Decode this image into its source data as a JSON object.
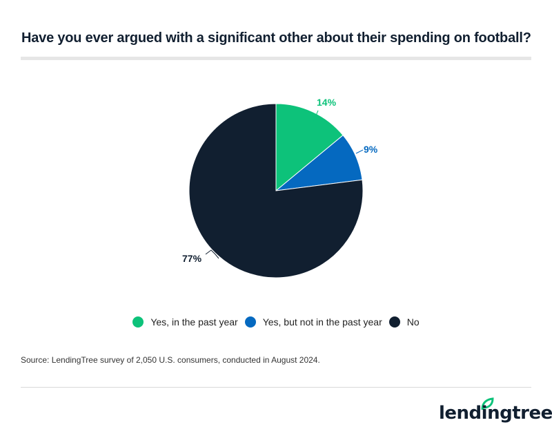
{
  "header": {
    "title": "Have you ever argued with a significant other about their spending on football?"
  },
  "chart_data": {
    "type": "pie",
    "title": "Have you ever argued with a significant other about their spending on football?",
    "categories": [
      "Yes, in the past year",
      "Yes, but not in the past year",
      "No"
    ],
    "values": [
      14,
      9,
      77
    ],
    "labels": [
      "14%",
      "9%",
      "77%"
    ],
    "colors": [
      "#0dc27a",
      "#0569c0",
      "#111f30"
    ],
    "legend_position": "bottom",
    "start_angle": "12 o'clock, clockwise"
  },
  "legend": {
    "items": [
      {
        "label": "Yes, in the past year",
        "color": "#0dc27a"
      },
      {
        "label": "Yes, but not in the past year",
        "color": "#0569c0"
      },
      {
        "label": "No",
        "color": "#111f30"
      }
    ]
  },
  "footer": {
    "source": "Source: LendingTree survey of 2,050 U.S. consumers, conducted in August 2024.",
    "logo_text": "lendingtree",
    "logo_color": "#0dc27a"
  }
}
